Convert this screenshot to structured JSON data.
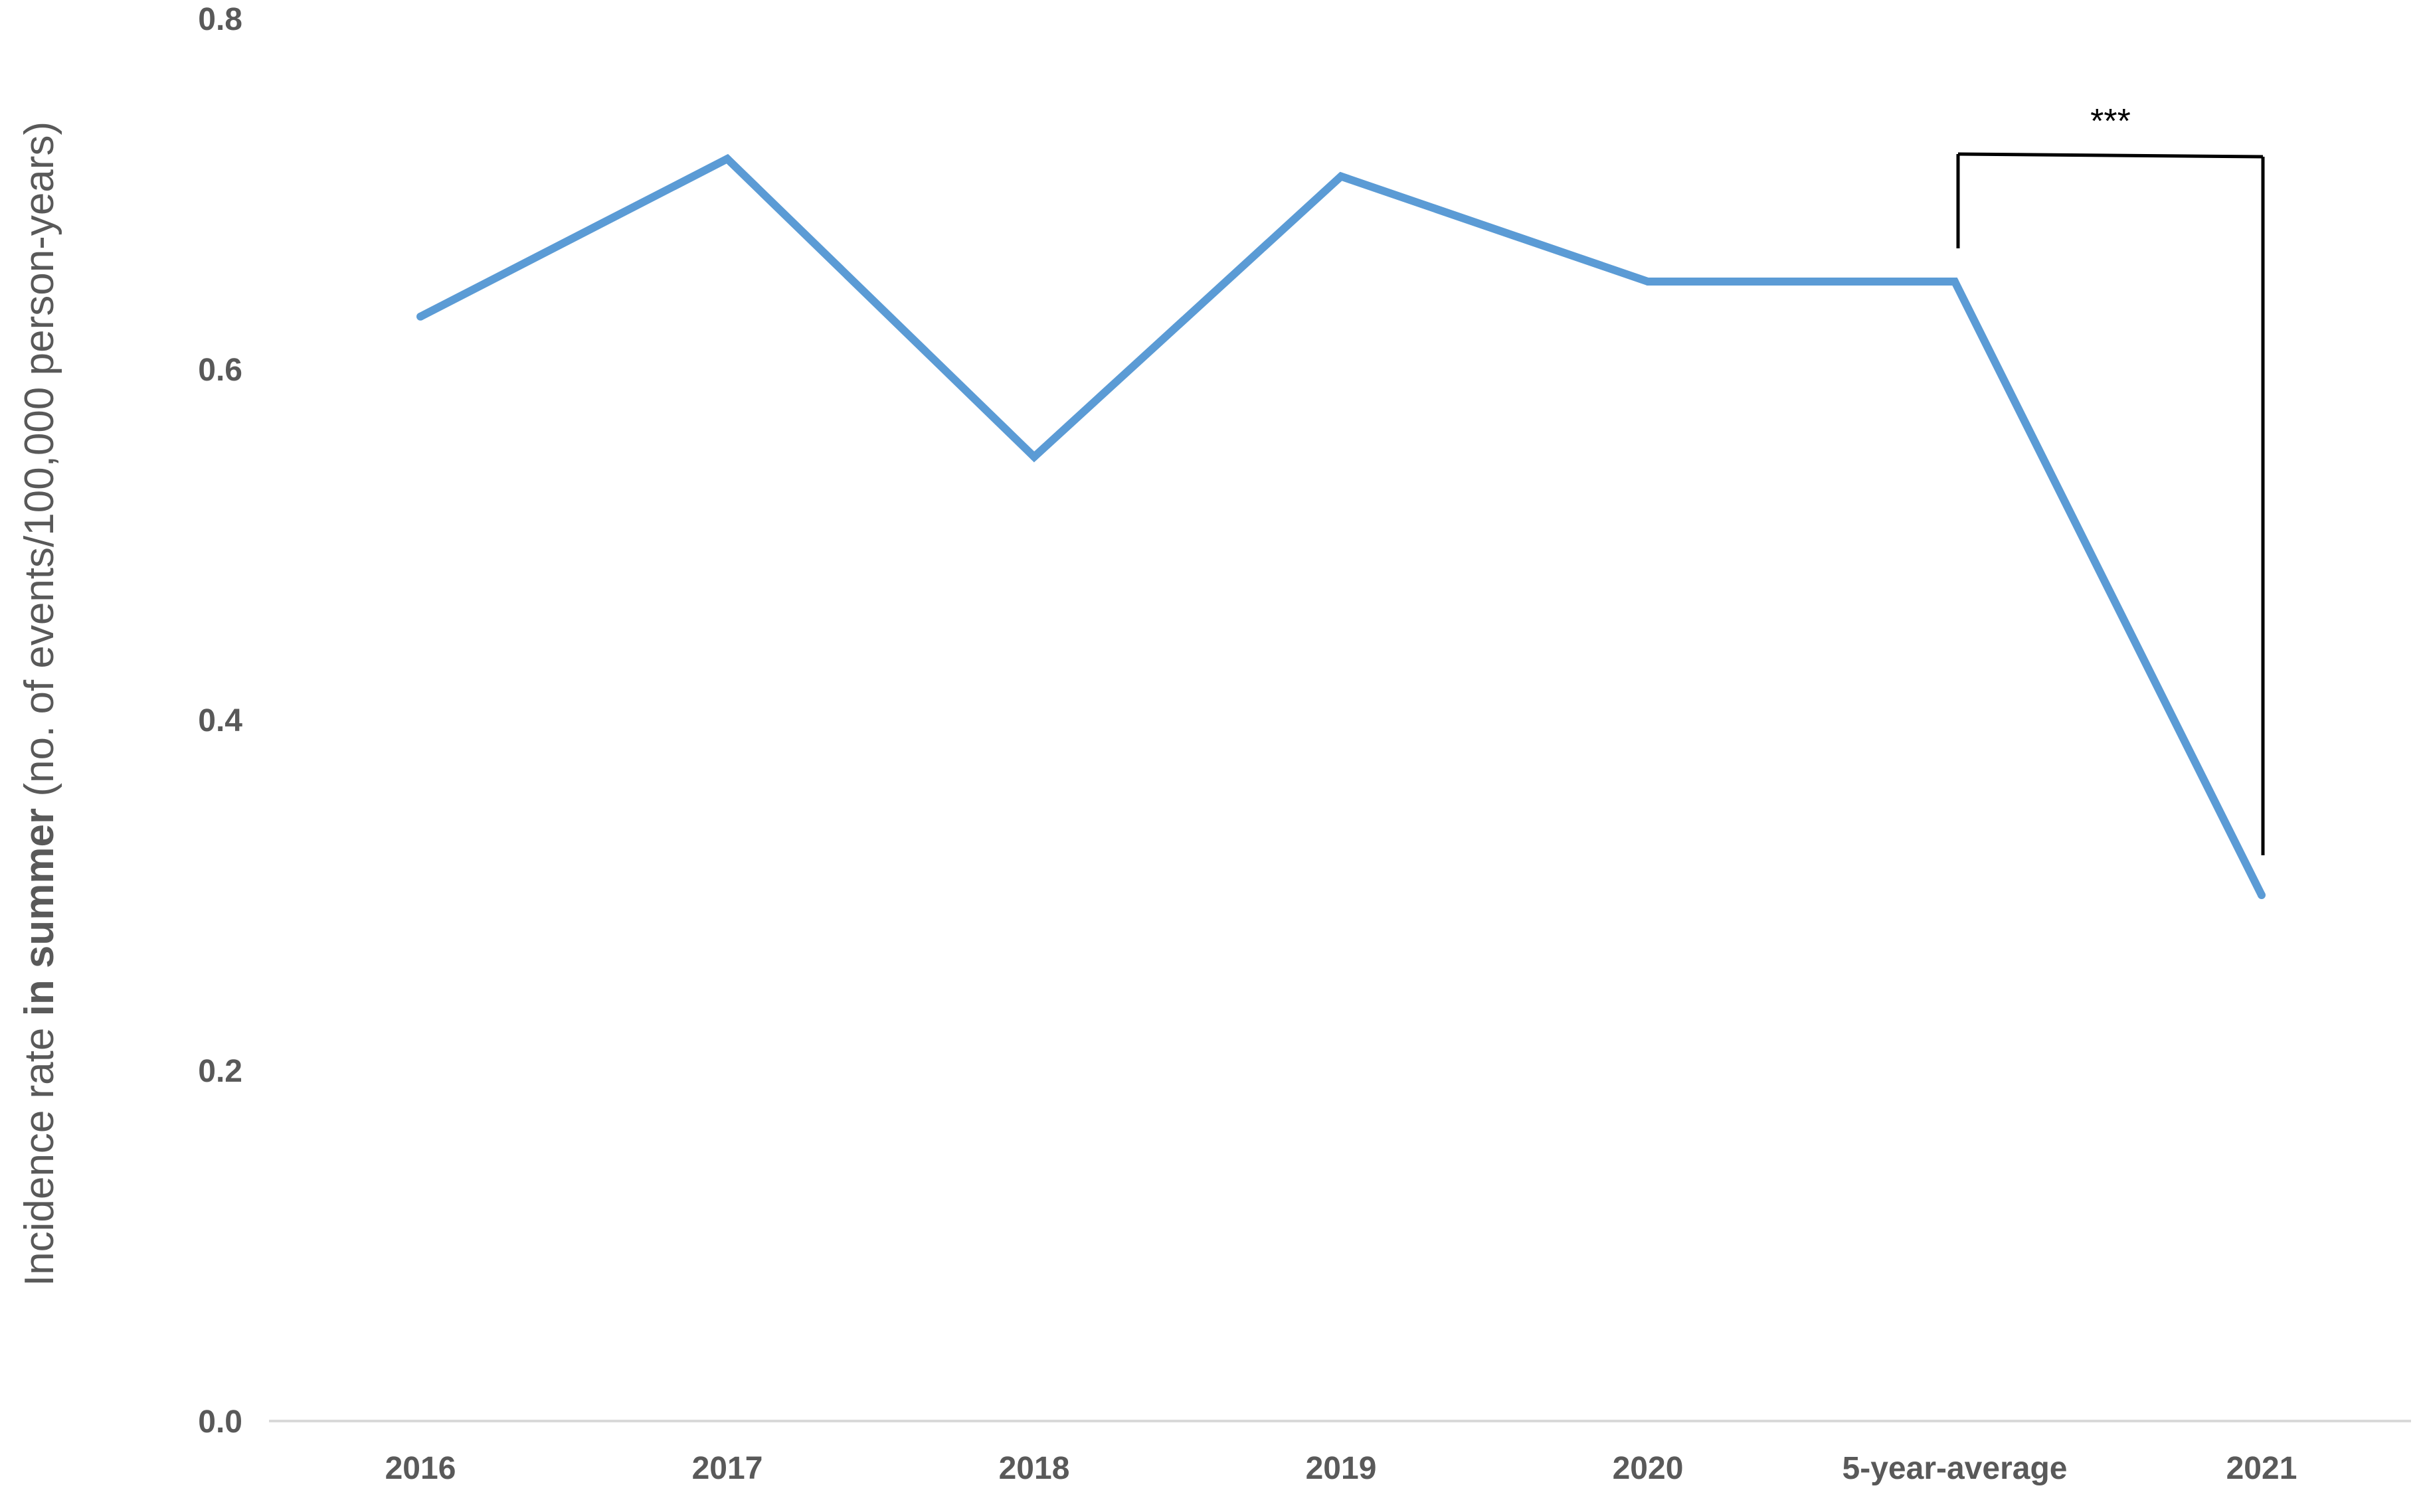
{
  "chart_data": {
    "type": "line",
    "categories": [
      "2016",
      "2017",
      "2018",
      "2019",
      "2020",
      "5-year-average",
      "2021"
    ],
    "series": [
      {
        "values": [
          0.63,
          0.72,
          0.55,
          0.71,
          0.65,
          0.65,
          0.3
        ]
      }
    ],
    "ylabel_parts": [
      "Incidence rate ",
      "in summer",
      " (no. of events/100,000 person-years)"
    ],
    "ylim": [
      0.0,
      0.8
    ],
    "yticks": [
      "0.0",
      "0.2",
      "0.4",
      "0.6",
      "0.8"
    ],
    "grid": false,
    "annotation": {
      "text": "***",
      "between": [
        "5-year-average",
        "2021"
      ]
    },
    "colors": {
      "line": "#5b9bd5",
      "axis": "#d9d9d9",
      "text": "#595959",
      "bracket": "#000000"
    }
  }
}
